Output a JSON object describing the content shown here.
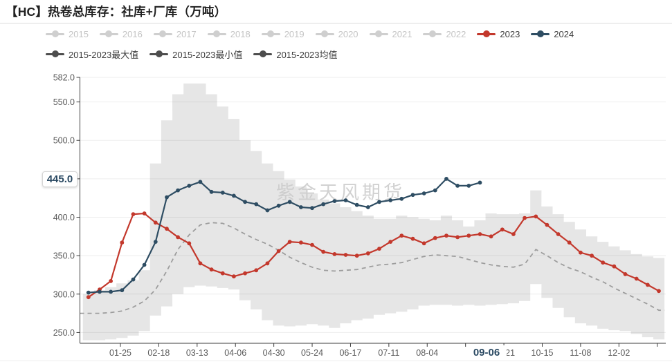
{
  "header": {
    "title": "【HC】热卷总库存：社库+厂库（万吨）"
  },
  "watermark": "紫金天风期货",
  "legend": {
    "row1": [
      {
        "label": "2015",
        "state": "muted"
      },
      {
        "label": "2016",
        "state": "muted"
      },
      {
        "label": "2017",
        "state": "muted"
      },
      {
        "label": "2018",
        "state": "muted"
      },
      {
        "label": "2019",
        "state": "muted"
      },
      {
        "label": "2020",
        "state": "muted"
      },
      {
        "label": "2021",
        "state": "muted"
      },
      {
        "label": "2022",
        "state": "muted"
      },
      {
        "label": "2023",
        "state": "red"
      },
      {
        "label": "2024",
        "state": "navy"
      }
    ],
    "row2": [
      {
        "label": "2015-2023最大值",
        "state": "dark"
      },
      {
        "label": "2015-2023最小值",
        "state": "dark"
      },
      {
        "label": "2015-2023均值",
        "state": "dark"
      }
    ]
  },
  "colors": {
    "red": "#c3382c",
    "navy": "#2e4d63",
    "band": "#e6e6e6",
    "mean": "#9d9d9d",
    "muted_marker": "#cfcfcf",
    "muted_text": "#c4c4c4",
    "legend_text": "#3c3c3c",
    "dark_marker": "#4d4d4d",
    "axis_line": "#3c3c3c",
    "axis_text": "#595959",
    "badge_text": "#2b4a63",
    "watermark": "#c9c9c9"
  },
  "chart_data": {
    "type": "line",
    "title": "【HC】热卷总库存：社库+厂库（万吨）",
    "ylabel": "万吨",
    "ylim": [
      236,
      582
    ],
    "grid": true,
    "legend_position": "top",
    "y_ticks": [
      {
        "v": 582,
        "label": "582.0"
      },
      {
        "v": 550,
        "label": "550.0"
      },
      {
        "v": 500,
        "label": "500.0"
      },
      {
        "v": 450,
        "label": ""
      },
      {
        "v": 400,
        "label": "400.0"
      },
      {
        "v": 350,
        "label": "350.0"
      },
      {
        "v": 300,
        "label": "300.0"
      },
      {
        "v": 250,
        "label": "250.0"
      }
    ],
    "y_badge": {
      "label": "445.0",
      "anchor_value": 450
    },
    "x_badge": {
      "label": "09-06",
      "date": "09-06"
    },
    "x_ticks": [
      {
        "date": "01-25",
        "label": "01-25"
      },
      {
        "date": "02-18",
        "label": "02-18"
      },
      {
        "date": "03-13",
        "label": "03-13"
      },
      {
        "date": "04-06",
        "label": "04-06"
      },
      {
        "date": "04-30",
        "label": "04-30"
      },
      {
        "date": "05-24",
        "label": "05-24"
      },
      {
        "date": "06-17",
        "label": "06-17"
      },
      {
        "date": "07-11",
        "label": "07-11"
      },
      {
        "date": "08-04",
        "label": "08-04"
      },
      {
        "date": "08-28",
        "label": ""
      },
      {
        "date": "09-21",
        "label": "09-21"
      },
      {
        "date": "10-15",
        "label": "10-15"
      },
      {
        "date": "11-08",
        "label": "11-08"
      },
      {
        "date": "12-02",
        "label": "12-02"
      },
      {
        "date": "12-26",
        "label": ""
      }
    ],
    "dates": [
      "01-05",
      "01-12",
      "01-19",
      "01-26",
      "02-02",
      "02-09",
      "02-16",
      "02-23",
      "03-01",
      "03-08",
      "03-15",
      "03-22",
      "03-29",
      "04-05",
      "04-12",
      "04-19",
      "04-26",
      "05-03",
      "05-10",
      "05-17",
      "05-24",
      "05-31",
      "06-07",
      "06-14",
      "06-21",
      "06-28",
      "07-05",
      "07-12",
      "07-19",
      "07-26",
      "08-02",
      "08-09",
      "08-16",
      "08-23",
      "08-30",
      "09-06",
      "09-13",
      "09-20",
      "09-27",
      "10-04",
      "10-11",
      "10-18",
      "10-25",
      "11-01",
      "11-08",
      "11-15",
      "11-22",
      "11-29",
      "12-06",
      "12-13",
      "12-20",
      "12-27"
    ],
    "series": [
      {
        "key": "max",
        "name": "2015-2023最大值",
        "values": [
          300,
          305,
          309,
          314,
          318,
          331,
          470,
          526,
          560,
          574,
          574,
          560,
          544,
          528,
          500,
          486,
          470,
          460,
          449,
          440,
          431,
          423,
          418,
          413,
          408,
          402,
          398,
          398,
          402,
          400,
          398,
          396,
          402,
          396,
          388,
          396,
          405,
          404,
          404,
          405,
          435,
          414,
          404,
          394,
          384,
          375,
          368,
          362,
          357,
          352,
          349,
          347
        ]
      },
      {
        "key": "min",
        "name": "2015-2023最小值",
        "values": [
          240,
          240,
          241,
          243,
          246,
          252,
          272,
          284,
          300,
          309,
          311,
          310,
          308,
          306,
          292,
          280,
          266,
          259,
          258,
          259,
          261,
          259,
          256,
          262,
          266,
          268,
          273,
          275,
          277,
          280,
          285,
          286,
          286,
          285,
          286,
          285,
          286,
          287,
          288,
          291,
          313,
          295,
          282,
          270,
          262,
          259,
          255,
          253,
          252,
          248,
          244,
          241
        ]
      },
      {
        "key": "mean",
        "name": "2015-2023均值",
        "values": [
          275,
          275,
          276,
          278,
          283,
          291,
          306,
          330,
          358,
          377,
          390,
          393,
          392,
          386,
          378,
          371,
          365,
          357,
          348,
          341,
          335,
          331,
          330,
          331,
          332,
          335,
          338,
          339,
          341,
          345,
          349,
          351,
          350,
          349,
          345,
          341,
          338,
          336,
          335,
          339,
          358,
          350,
          341,
          334,
          329,
          322,
          316,
          308,
          301,
          294,
          287,
          279
        ]
      },
      {
        "key": "y2023",
        "name": "2023",
        "values": [
          296,
          306,
          317,
          367,
          404,
          405,
          393,
          385,
          374,
          366,
          340,
          332,
          327,
          323,
          327,
          331,
          340,
          356,
          368,
          367,
          364,
          355,
          352,
          351,
          350,
          353,
          359,
          368,
          376,
          372,
          366,
          373,
          376,
          374,
          376,
          378,
          375,
          384,
          378,
          399,
          401,
          390,
          378,
          367,
          354,
          350,
          341,
          336,
          326,
          320,
          312,
          304
        ]
      },
      {
        "key": "y2024",
        "name": "2024",
        "values": [
          302,
          303,
          303,
          305,
          319,
          338,
          368,
          426,
          435,
          441,
          446,
          433,
          432,
          428,
          420,
          417,
          409,
          415,
          420,
          413,
          412,
          417,
          421,
          422,
          416,
          413,
          420,
          422,
          424,
          429,
          431,
          435,
          450,
          441,
          441,
          445
        ]
      }
    ]
  }
}
